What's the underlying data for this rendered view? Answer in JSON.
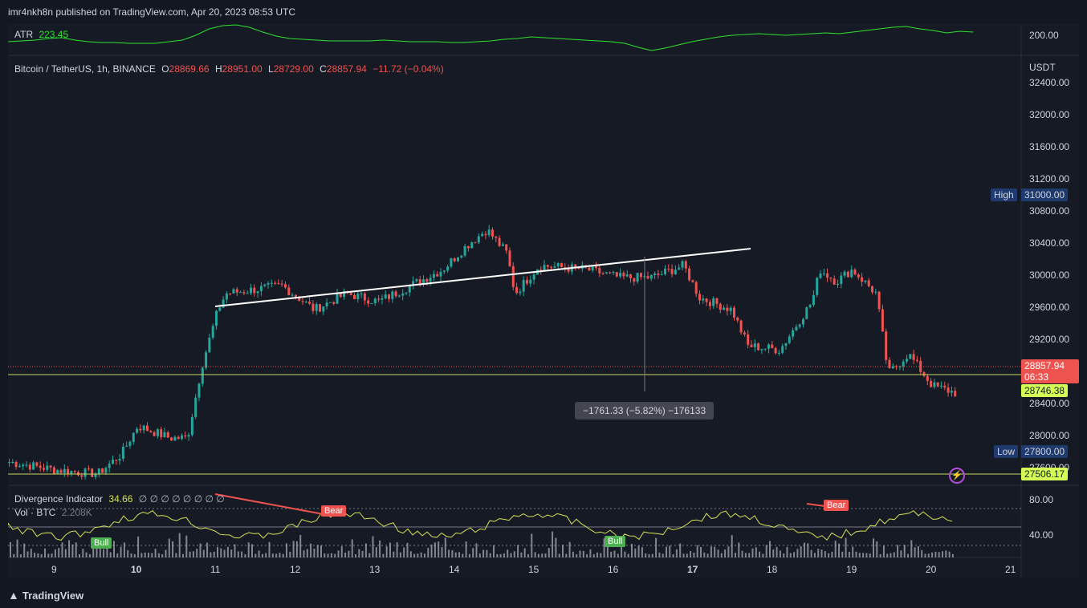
{
  "header": {
    "published": "imr4nkh8n published on TradingView.com, Apr 20, 2023 08:53 UTC"
  },
  "atr": {
    "label": "ATR",
    "value": "223.45",
    "axis_label": "200.00"
  },
  "symbol": {
    "name": "Bitcoin / TetherUS, 1h, BINANCE",
    "open_label": "O",
    "open": "28869.66",
    "high_label": "H",
    "high": "28951.00",
    "low_label": "L",
    "low": "28729.00",
    "close_label": "C",
    "close": "28857.94",
    "change": "−11.72 (−0.04%)"
  },
  "price_axis": {
    "currency": "USDT",
    "ticks": [
      "32400.00",
      "32000.00",
      "31600.00",
      "31200.00",
      "30800.00",
      "30400.00",
      "30000.00",
      "29600.00",
      "29200.00",
      "28400.00",
      "28000.00",
      "27600.00"
    ],
    "high_label": "High",
    "high_value": "31000.00",
    "low_label": "Low",
    "low_value": "27800.00",
    "last_price": "28857.94",
    "countdown": "06:33",
    "line_level": "28746.38",
    "bottom_level": "27506.17"
  },
  "measure_box": {
    "text": "−1761.33 (−5.82%) −176133"
  },
  "indicator": {
    "name": "Divergence Indicator",
    "value": "34.66",
    "placeholders": "∅ ∅ ∅ ∅ ∅ ∅ ∅ ∅",
    "vol_label": "Vol · BTC",
    "vol_value": "2.208K",
    "axis": [
      "80.00",
      "40.00"
    ],
    "bull_label": "Bull",
    "bear_label": "Bear"
  },
  "time_axis": [
    "9",
    "10",
    "11",
    "12",
    "13",
    "14",
    "15",
    "16",
    "17",
    "18",
    "19",
    "20",
    "21"
  ],
  "footer": {
    "brand": "TradingView"
  },
  "colors": {
    "up": "#26a69a",
    "down": "#ef5350",
    "bg": "#161a25",
    "atr_line": "#2ee22e",
    "indicator_line": "#d4e157"
  }
}
